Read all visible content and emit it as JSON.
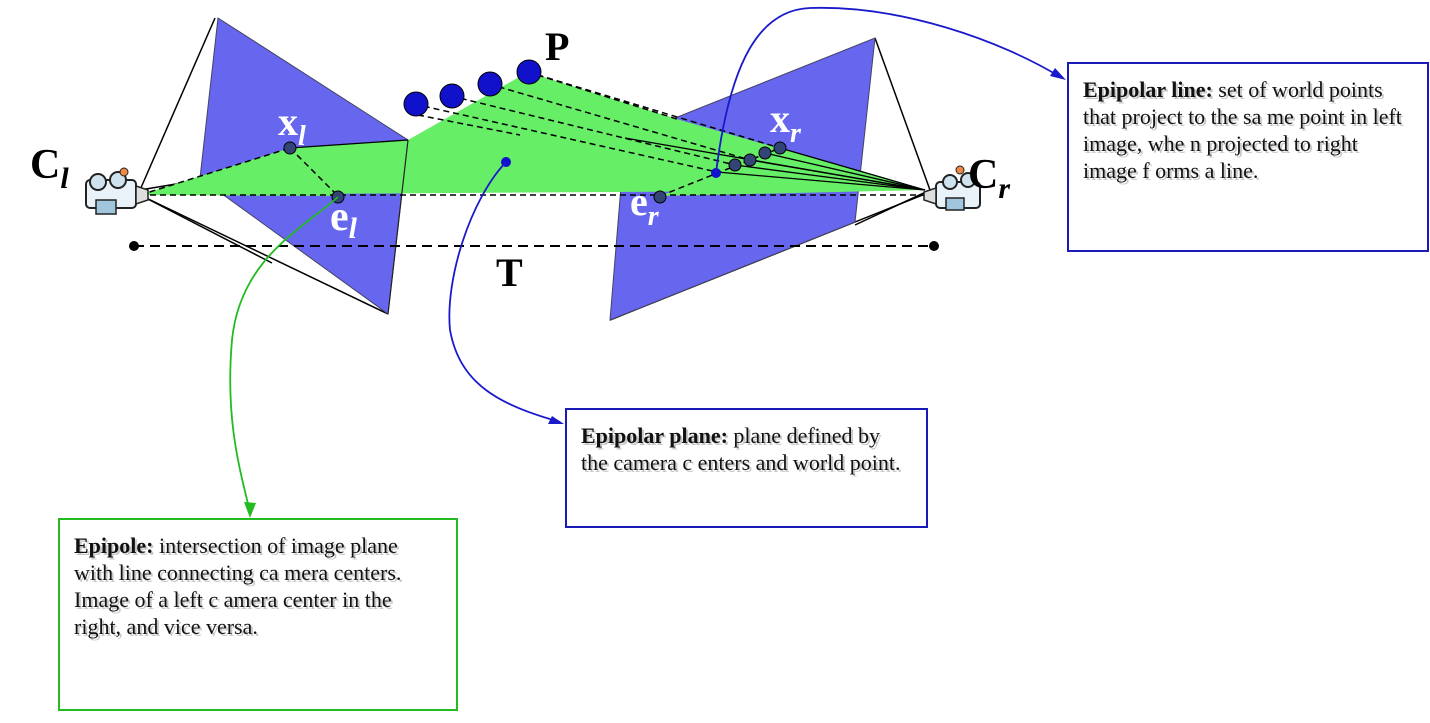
{
  "labels": {
    "point_p": "P",
    "cam_left_main": "C",
    "cam_left_sub": "l",
    "cam_right_main": "C",
    "cam_right_sub": "r",
    "x_left_main": "x",
    "x_left_sub": "l",
    "x_right_main": "x",
    "x_right_sub": "r",
    "e_left_main": "e",
    "e_left_sub": "l",
    "e_right_main": "e",
    "e_right_sub": "r",
    "baseline": "T"
  },
  "callouts": {
    "epipolar_line": {
      "title": "Epipolar line:",
      "text": " set of world points that project to the sa me point in left image, whe n projected to right image f orms a line."
    },
    "epipolar_plane": {
      "title": "Epipolar plane:",
      "text": " plane defined by the camera c enters and world point."
    },
    "epipole": {
      "title": "Epipole:",
      "text": " intersection of image plane with line connecting ca mera centers. Image of a left c amera center in the right, and vice versa."
    }
  },
  "colors": {
    "image_plane": "#6666ee",
    "epipolar_plane": "#66ee66",
    "points": "#1111cc",
    "line_callout": "#1a1ab8",
    "epipole_callout": "#22bb22"
  }
}
